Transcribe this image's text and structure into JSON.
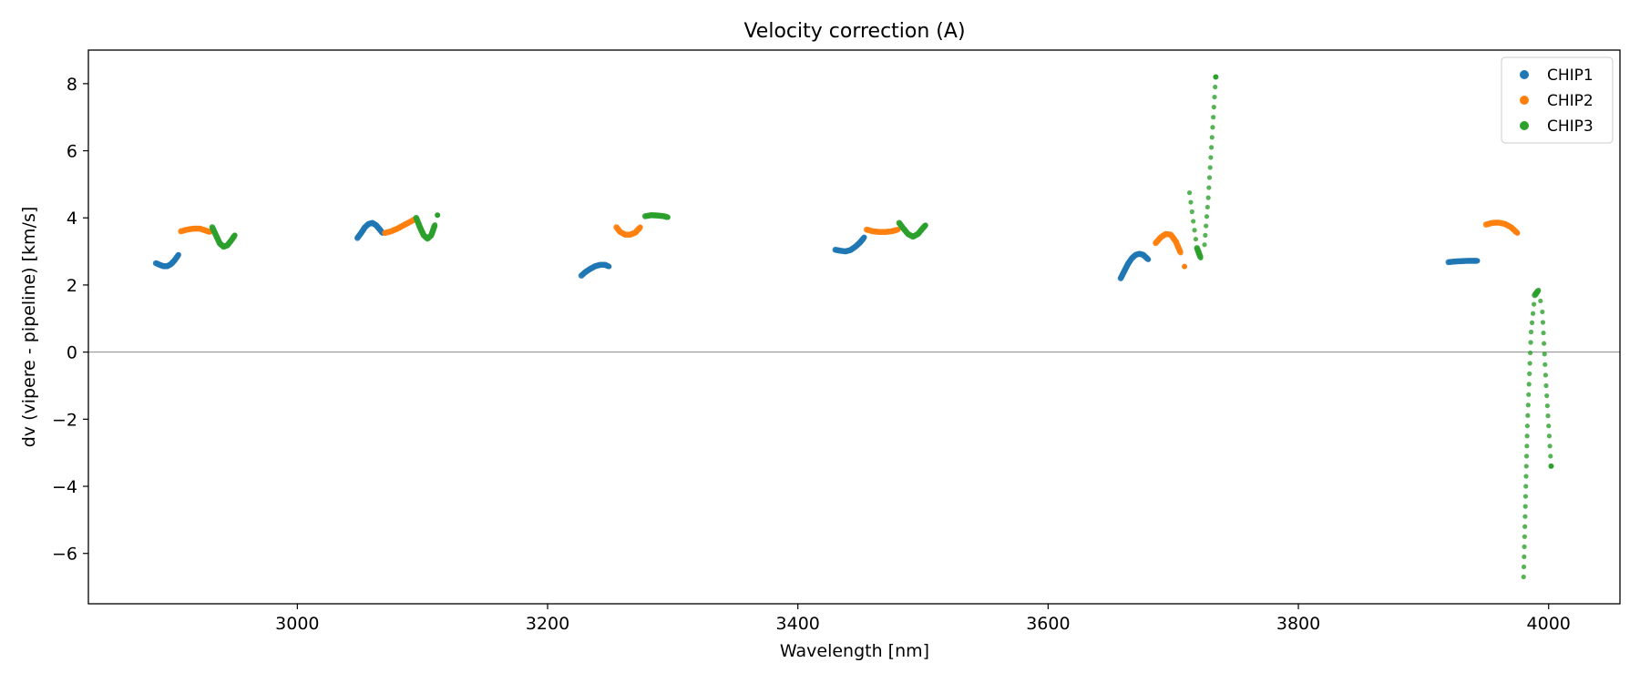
{
  "chart_data": {
    "type": "scatter",
    "title": "Velocity correction (A)",
    "xlabel": "Wavelength [nm]",
    "ylabel": "dv (vipere - pipeline) [km/s]",
    "xlim": [
      2833,
      4057
    ],
    "ylim": [
      -7.5,
      9.0
    ],
    "xticks": [
      3000,
      3200,
      3400,
      3600,
      3800,
      4000
    ],
    "yticks": [
      -6,
      -4,
      -2,
      0,
      2,
      4,
      6,
      8
    ],
    "grid": false,
    "zero_line": true,
    "legend_position": "top-right",
    "series": [
      {
        "name": "CHIP1",
        "color": "#1f77b4",
        "segments": [
          [
            [
              2887,
              2.65
            ],
            [
              2890,
              2.6
            ],
            [
              2893,
              2.56
            ],
            [
              2896,
              2.56
            ],
            [
              2899,
              2.62
            ],
            [
              2902,
              2.74
            ],
            [
              2905,
              2.9
            ]
          ],
          [
            [
              3048,
              3.4
            ],
            [
              3051,
              3.55
            ],
            [
              3054,
              3.72
            ],
            [
              3057,
              3.82
            ],
            [
              3060,
              3.85
            ],
            [
              3063,
              3.78
            ],
            [
              3066,
              3.65
            ],
            [
              3068,
              3.55
            ]
          ],
          [
            [
              3227,
              2.28
            ],
            [
              3230,
              2.38
            ],
            [
              3234,
              2.48
            ],
            [
              3238,
              2.56
            ],
            [
              3242,
              2.6
            ],
            [
              3246,
              2.6
            ],
            [
              3249,
              2.55
            ]
          ],
          [
            [
              3430,
              3.05
            ],
            [
              3434,
              3.02
            ],
            [
              3438,
              3.0
            ],
            [
              3442,
              3.04
            ],
            [
              3446,
              3.14
            ],
            [
              3450,
              3.28
            ],
            [
              3453,
              3.42
            ]
          ],
          [
            [
              3658,
              2.2
            ],
            [
              3661,
              2.42
            ],
            [
              3664,
              2.64
            ],
            [
              3667,
              2.8
            ],
            [
              3670,
              2.9
            ],
            [
              3673,
              2.93
            ],
            [
              3676,
              2.9
            ],
            [
              3680,
              2.76
            ]
          ],
          [
            [
              3920,
              2.68
            ],
            [
              3925,
              2.7
            ],
            [
              3930,
              2.71
            ],
            [
              3935,
              2.72
            ],
            [
              3940,
              2.72
            ],
            [
              3943,
              2.72
            ]
          ]
        ]
      },
      {
        "name": "CHIP2",
        "color": "#ff7f0e",
        "segments": [
          [
            [
              2907,
              3.6
            ],
            [
              2912,
              3.65
            ],
            [
              2917,
              3.68
            ],
            [
              2922,
              3.68
            ],
            [
              2927,
              3.62
            ],
            [
              2930,
              3.58
            ]
          ],
          [
            [
              3070,
              3.55
            ],
            [
              3075,
              3.6
            ],
            [
              3080,
              3.68
            ],
            [
              3085,
              3.78
            ],
            [
              3090,
              3.88
            ],
            [
              3095,
              3.98
            ]
          ],
          [
            [
              3255,
              3.72
            ],
            [
              3258,
              3.58
            ],
            [
              3262,
              3.5
            ],
            [
              3266,
              3.5
            ],
            [
              3270,
              3.56
            ],
            [
              3274,
              3.72
            ]
          ],
          [
            [
              3455,
              3.65
            ],
            [
              3460,
              3.6
            ],
            [
              3465,
              3.58
            ],
            [
              3470,
              3.58
            ],
            [
              3475,
              3.6
            ],
            [
              3480,
              3.65
            ]
          ],
          [
            [
              3686,
              3.25
            ],
            [
              3690,
              3.42
            ],
            [
              3694,
              3.52
            ],
            [
              3698,
              3.5
            ],
            [
              3702,
              3.3
            ],
            [
              3706,
              2.95
            ],
            [
              3709,
              2.55
            ]
          ],
          [
            [
              3950,
              3.8
            ],
            [
              3955,
              3.85
            ],
            [
              3960,
              3.86
            ],
            [
              3965,
              3.82
            ],
            [
              3970,
              3.72
            ],
            [
              3975,
              3.55
            ]
          ]
        ]
      },
      {
        "name": "CHIP3",
        "color": "#2ca02c",
        "segments": [
          [
            [
              2932,
              3.72
            ],
            [
              2935,
              3.48
            ],
            [
              2938,
              3.24
            ],
            [
              2941,
              3.14
            ],
            [
              2944,
              3.18
            ],
            [
              2947,
              3.32
            ],
            [
              2950,
              3.48
            ]
          ],
          [
            [
              3095,
              4.0
            ],
            [
              3098,
              3.72
            ],
            [
              3101,
              3.48
            ],
            [
              3104,
              3.38
            ],
            [
              3107,
              3.48
            ],
            [
              3110,
              3.8
            ],
            [
              3112,
              4.08
            ]
          ],
          [
            [
              3278,
              4.05
            ],
            [
              3283,
              4.08
            ],
            [
              3288,
              4.07
            ],
            [
              3293,
              4.05
            ],
            [
              3296,
              4.02
            ]
          ],
          [
            [
              3481,
              3.85
            ],
            [
              3484,
              3.7
            ],
            [
              3488,
              3.52
            ],
            [
              3492,
              3.44
            ],
            [
              3496,
              3.52
            ],
            [
              3500,
              3.7
            ],
            [
              3502,
              3.78
            ]
          ],
          [
            [
              3713,
              4.75
            ],
            [
              3716,
              3.9
            ],
            [
              3719,
              3.1
            ],
            [
              3722,
              2.8
            ],
            [
              3725,
              3.2
            ],
            [
              3728,
              4.6
            ],
            [
              3731,
              6.4
            ],
            [
              3734,
              8.2
            ]
          ],
          [
            [
              3980,
              -6.7
            ],
            [
              3983,
              -2.2
            ],
            [
              3986,
              0.6
            ],
            [
              3989,
              1.7
            ],
            [
              3992,
              1.85
            ],
            [
              3995,
              1.2
            ],
            [
              3998,
              -1.0
            ],
            [
              4002,
              -3.4
            ]
          ]
        ]
      }
    ]
  }
}
